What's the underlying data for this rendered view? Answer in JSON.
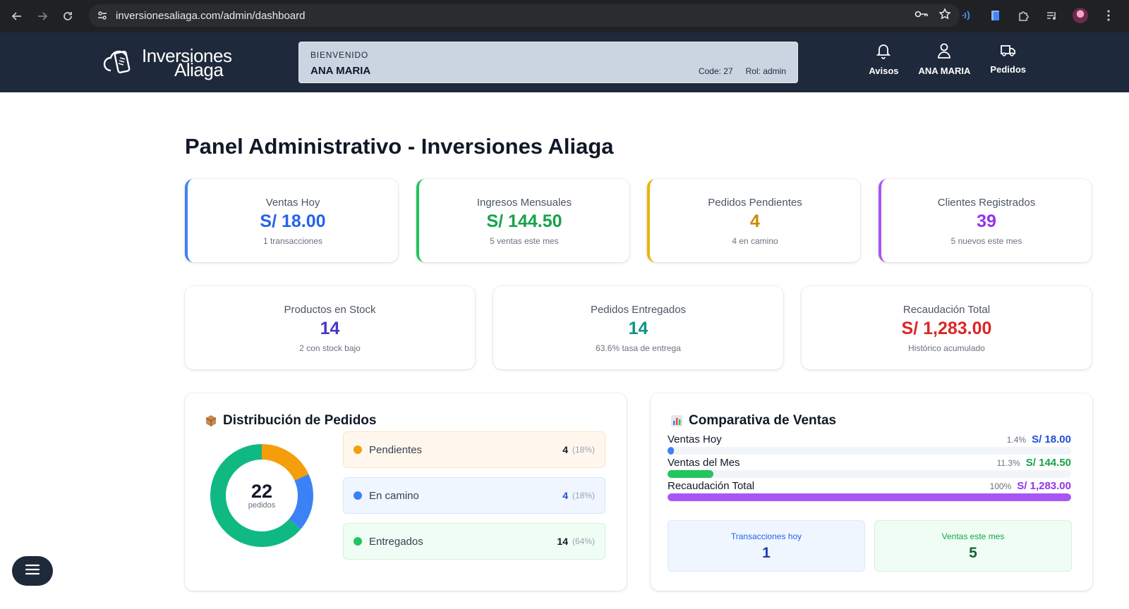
{
  "browser": {
    "url": "inversionesaliaga.com/admin/dashboard"
  },
  "header": {
    "logo_line1": "Inversiones",
    "logo_line2": "Aliaga",
    "welcome_label": "BIENVENIDO",
    "welcome_name": "ANA MARIA",
    "code": "Code: 27",
    "role": "Rol: admin",
    "nav": {
      "avisos": "Avisos",
      "user": "ANA MARIA",
      "pedidos": "Pedidos"
    }
  },
  "page_title": "Panel Administrativo - Inversiones Aliaga",
  "stats_top": [
    {
      "label": "Ventas Hoy",
      "value": "S/ 18.00",
      "sub": "1 transacciones",
      "color": "#2563eb"
    },
    {
      "label": "Ingresos Mensuales",
      "value": "S/ 144.50",
      "sub": "5 ventas este mes",
      "color": "#16a34a"
    },
    {
      "label": "Pedidos Pendientes",
      "value": "4",
      "sub": "4 en camino",
      "color": "#ca8a04"
    },
    {
      "label": "Clientes Registrados",
      "value": "39",
      "sub": "5 nuevos este mes",
      "color": "#9333ea"
    }
  ],
  "stats_mid": [
    {
      "label": "Productos en Stock",
      "value": "14",
      "sub": "2 con stock bajo",
      "color": "#4338ca"
    },
    {
      "label": "Pedidos Entregados",
      "value": "14",
      "sub": "63.6% tasa de entrega",
      "color": "#0d9488"
    },
    {
      "label": "Recaudación Total",
      "value": "S/ 1,283.00",
      "sub": "Histórico acumulado",
      "color": "#dc2626"
    }
  ],
  "distribution": {
    "title": "Distribución de Pedidos",
    "total": "22",
    "total_label": "pedidos",
    "items": [
      {
        "name": "Pendientes",
        "count": "4",
        "pct": "(18%)",
        "value": 4,
        "color": "#f59e0b"
      },
      {
        "name": "En camino",
        "count": "4",
        "pct": "(18%)",
        "value": 4,
        "color": "#3b82f6"
      },
      {
        "name": "Entregados",
        "count": "14",
        "pct": "(64%)",
        "value": 14,
        "color": "#10b981"
      }
    ]
  },
  "sales": {
    "title": "Comparativa de Ventas",
    "bars": [
      {
        "name": "Ventas Hoy",
        "pct": "1.4%",
        "value": "S/ 18.00",
        "fraction": 0.014,
        "color": "#3b82f6",
        "text_color": "#1d4ed8"
      },
      {
        "name": "Ventas del Mes",
        "pct": "11.3%",
        "value": "S/ 144.50",
        "fraction": 0.113,
        "color": "#22c55e",
        "text_color": "#16a34a"
      },
      {
        "name": "Recaudación Total",
        "pct": "100%",
        "value": "S/ 1,283.00",
        "fraction": 1.0,
        "color": "#a855f7",
        "text_color": "#9333ea"
      }
    ],
    "mini": [
      {
        "label": "Transacciones hoy",
        "value": "1"
      },
      {
        "label": "Ventas este mes",
        "value": "5"
      }
    ]
  }
}
